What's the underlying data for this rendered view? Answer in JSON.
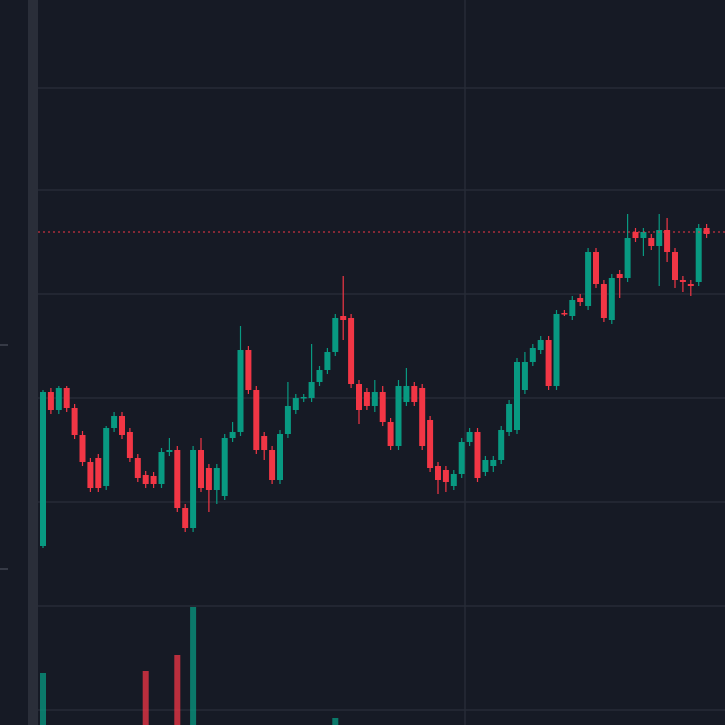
{
  "chart_data": {
    "type": "candlestick",
    "ylim": [
      0,
      725
    ],
    "up_color": "#089981",
    "down_color": "#f23645",
    "open": [
      179,
      333,
      315,
      337,
      317,
      290,
      263,
      267,
      239,
      297,
      309,
      293,
      267,
      250,
      249,
      241,
      273,
      275,
      217,
      197,
      275,
      257,
      235,
      229,
      287,
      293,
      375,
      335,
      289,
      275,
      245,
      291,
      315,
      327,
      327,
      343,
      355,
      373,
      409,
      407,
      341,
      333,
      319,
      333,
      303,
      279,
      323,
      339,
      337,
      305,
      259,
      255,
      239,
      251,
      283,
      293,
      253,
      259,
      265,
      293,
      295,
      335,
      363,
      375,
      385,
      339,
      412,
      409,
      427,
      419,
      473,
      441,
      405,
      451,
      447,
      493,
      487,
      487,
      479,
      495,
      473,
      445,
      441,
      443,
      497
    ],
    "close": [
      333,
      315,
      337,
      317,
      290,
      263,
      237,
      237,
      297,
      309,
      290,
      267,
      247,
      241,
      241,
      273,
      275,
      217,
      197,
      275,
      237,
      235,
      257,
      287,
      293,
      375,
      335,
      275,
      275,
      245,
      291,
      319,
      327,
      328,
      343,
      355,
      373,
      407,
      405,
      341,
      315,
      319,
      333,
      303,
      279,
      339,
      339,
      323,
      279,
      257,
      245,
      243,
      251,
      283,
      293,
      247,
      265,
      265,
      295,
      321,
      363,
      363,
      377,
      385,
      339,
      411,
      411,
      425,
      423,
      473,
      441,
      407,
      447,
      447,
      487,
      487,
      493,
      479,
      495,
      473,
      445,
      443,
      439,
      497,
      491
    ],
    "high": [
      335,
      337,
      339,
      339,
      321,
      294,
      267,
      271,
      299,
      313,
      313,
      297,
      271,
      254,
      253,
      277,
      287,
      279,
      221,
      279,
      287,
      261,
      261,
      291,
      303,
      399,
      379,
      339,
      293,
      279,
      295,
      343,
      331,
      331,
      381,
      359,
      377,
      411,
      449,
      411,
      345,
      337,
      345,
      339,
      307,
      345,
      357,
      343,
      341,
      309,
      263,
      259,
      255,
      287,
      297,
      297,
      269,
      269,
      299,
      325,
      367,
      373,
      381,
      389,
      389,
      415,
      415,
      429,
      431,
      477,
      477,
      445,
      451,
      455,
      511,
      497,
      497,
      491,
      511,
      507,
      477,
      449,
      445,
      501,
      501
    ],
    "low": [
      177,
      311,
      311,
      313,
      286,
      259,
      233,
      233,
      235,
      293,
      286,
      263,
      243,
      237,
      237,
      237,
      269,
      213,
      193,
      193,
      233,
      213,
      221,
      225,
      283,
      289,
      331,
      271,
      265,
      241,
      241,
      287,
      311,
      323,
      323,
      339,
      351,
      369,
      385,
      337,
      301,
      315,
      313,
      299,
      275,
      275,
      319,
      319,
      275,
      253,
      231,
      233,
      235,
      247,
      279,
      243,
      249,
      253,
      261,
      289,
      291,
      331,
      359,
      371,
      335,
      335,
      409,
      405,
      419,
      415,
      437,
      403,
      401,
      427,
      443,
      483,
      469,
      475,
      439,
      463,
      437,
      433,
      429,
      439,
      487
    ],
    "volume": [
      52,
      null,
      null,
      null,
      null,
      null,
      null,
      null,
      null,
      null,
      null,
      null,
      null,
      54,
      null,
      null,
      null,
      70,
      null,
      118,
      null,
      null,
      null,
      null,
      null,
      null,
      null,
      null,
      null,
      null,
      null,
      null,
      null,
      null,
      null,
      null,
      null,
      7,
      null,
      null,
      null,
      null,
      null,
      null,
      null,
      null,
      null,
      null,
      null,
      null,
      null,
      null,
      null,
      null,
      null,
      null,
      null,
      null,
      null,
      null,
      null,
      null,
      null,
      null,
      null,
      null,
      null,
      null,
      null,
      null,
      null,
      null,
      null,
      null,
      null,
      null,
      null,
      null,
      null,
      null,
      null,
      null,
      null,
      null,
      null
    ]
  }
}
